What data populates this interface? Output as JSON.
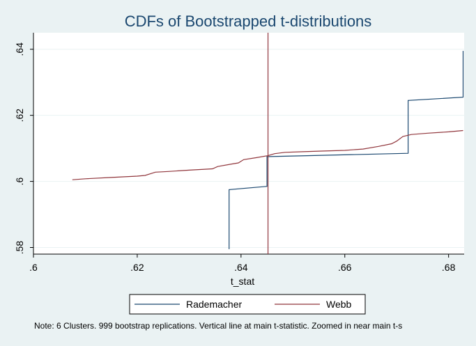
{
  "chart_data": {
    "type": "line",
    "title": "CDFs of Bootstrapped t-distributions",
    "xlabel": "t_stat",
    "ylabel": "",
    "xlim": [
      0.6,
      0.683
    ],
    "ylim": [
      0.578,
      0.645
    ],
    "xticks": [
      0.6,
      0.62,
      0.64,
      0.66,
      0.68
    ],
    "xtick_labels": [
      ".6",
      ".62",
      ".64",
      ".66",
      ".68"
    ],
    "yticks": [
      0.58,
      0.6,
      0.62,
      0.64
    ],
    "ytick_labels": [
      ".58",
      ".6",
      ".62",
      ".64"
    ],
    "grid": "horizontal",
    "legend_position": "bottom",
    "vline": {
      "x": 0.6452,
      "color": "#90353b"
    },
    "series": [
      {
        "name": "Rademacher",
        "color": "#1a476f",
        "points": [
          [
            0.6377,
            0.5795
          ],
          [
            0.6377,
            0.5975
          ],
          [
            0.645,
            0.5985
          ],
          [
            0.645,
            0.6075
          ],
          [
            0.6722,
            0.6085
          ],
          [
            0.6722,
            0.6245
          ],
          [
            0.6828,
            0.6255
          ],
          [
            0.6828,
            0.6395
          ]
        ]
      },
      {
        "name": "Webb",
        "color": "#90353b",
        "points": [
          [
            0.6075,
            0.6005
          ],
          [
            0.61,
            0.6008
          ],
          [
            0.615,
            0.6012
          ],
          [
            0.62,
            0.6016
          ],
          [
            0.6215,
            0.6018
          ],
          [
            0.6235,
            0.6028
          ],
          [
            0.626,
            0.603
          ],
          [
            0.63,
            0.6034
          ],
          [
            0.6345,
            0.6038
          ],
          [
            0.6355,
            0.6045
          ],
          [
            0.638,
            0.6052
          ],
          [
            0.6395,
            0.6056
          ],
          [
            0.6405,
            0.6066
          ],
          [
            0.643,
            0.6072
          ],
          [
            0.6452,
            0.6078
          ],
          [
            0.6465,
            0.6084
          ],
          [
            0.6485,
            0.6088
          ],
          [
            0.652,
            0.609
          ],
          [
            0.656,
            0.6092
          ],
          [
            0.66,
            0.6094
          ],
          [
            0.6635,
            0.6098
          ],
          [
            0.6665,
            0.6106
          ],
          [
            0.669,
            0.6114
          ],
          [
            0.67,
            0.6122
          ],
          [
            0.6712,
            0.6136
          ],
          [
            0.6728,
            0.6142
          ],
          [
            0.676,
            0.6146
          ],
          [
            0.68,
            0.615
          ],
          [
            0.6828,
            0.6154
          ]
        ]
      }
    ],
    "note": "Note: 6 Clusters.  999 bootstrap replications.  Vertical line at main t-statistic.  Zoomed in near main t-s"
  }
}
